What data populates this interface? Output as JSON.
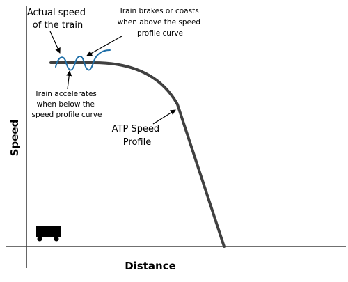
{
  "labels": {
    "actual_speed": [
      "Actual speed",
      "of the train"
    ],
    "brakes": [
      "Train brakes or coasts",
      "when above the speed",
      "profile curve"
    ],
    "accelerates": [
      "Train accelerates",
      "when below the",
      "speed profile curve"
    ],
    "atp": [
      "ATP Speed",
      "Profile"
    ]
  },
  "axes": {
    "x_title": "Distance",
    "y_title": "Speed"
  },
  "colors": {
    "profile": "#404040",
    "actual_speed": "#1f6fa8",
    "axes": "#404040",
    "train": "#000000"
  },
  "icons": {
    "train": "train-car-icon"
  }
}
